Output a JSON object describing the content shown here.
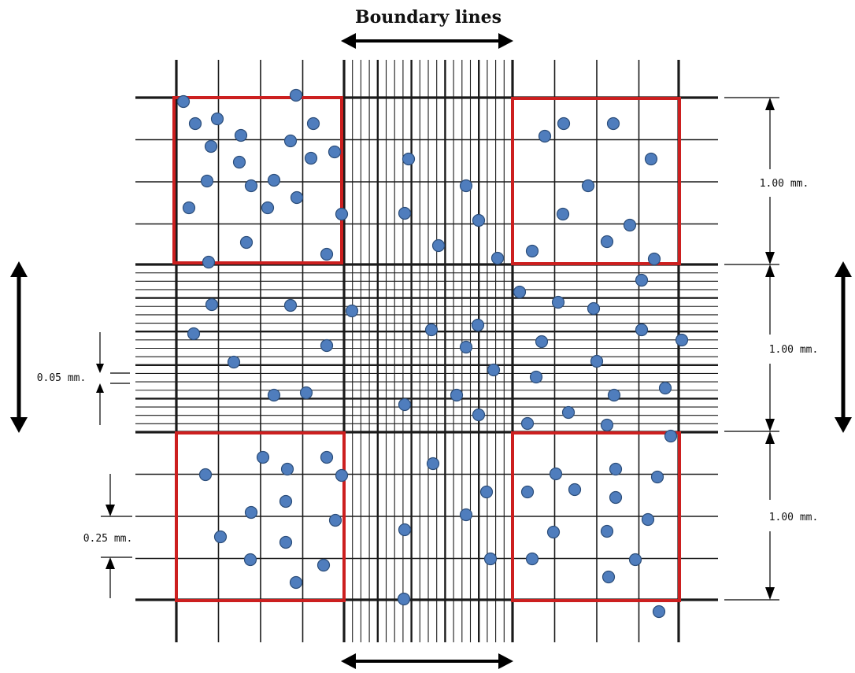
{
  "title": "Boundary lines",
  "dimension_labels": {
    "right_top": "1.00 mm.",
    "right_middle": "1.00 mm.",
    "right_bottom": "1.00 mm.",
    "left_small": "0.05 mm.",
    "left_quarter": "0.25 mm."
  },
  "colors": {
    "grid": "#1a1a1a",
    "counting_square": "#cc1f1f",
    "cell_fill": "#4f7dbd",
    "cell_stroke": "#2c4e7a",
    "arrow": "#000000"
  },
  "icons": [
    "double-arrow-horizontal-icon",
    "double-arrow-vertical-icon"
  ]
}
